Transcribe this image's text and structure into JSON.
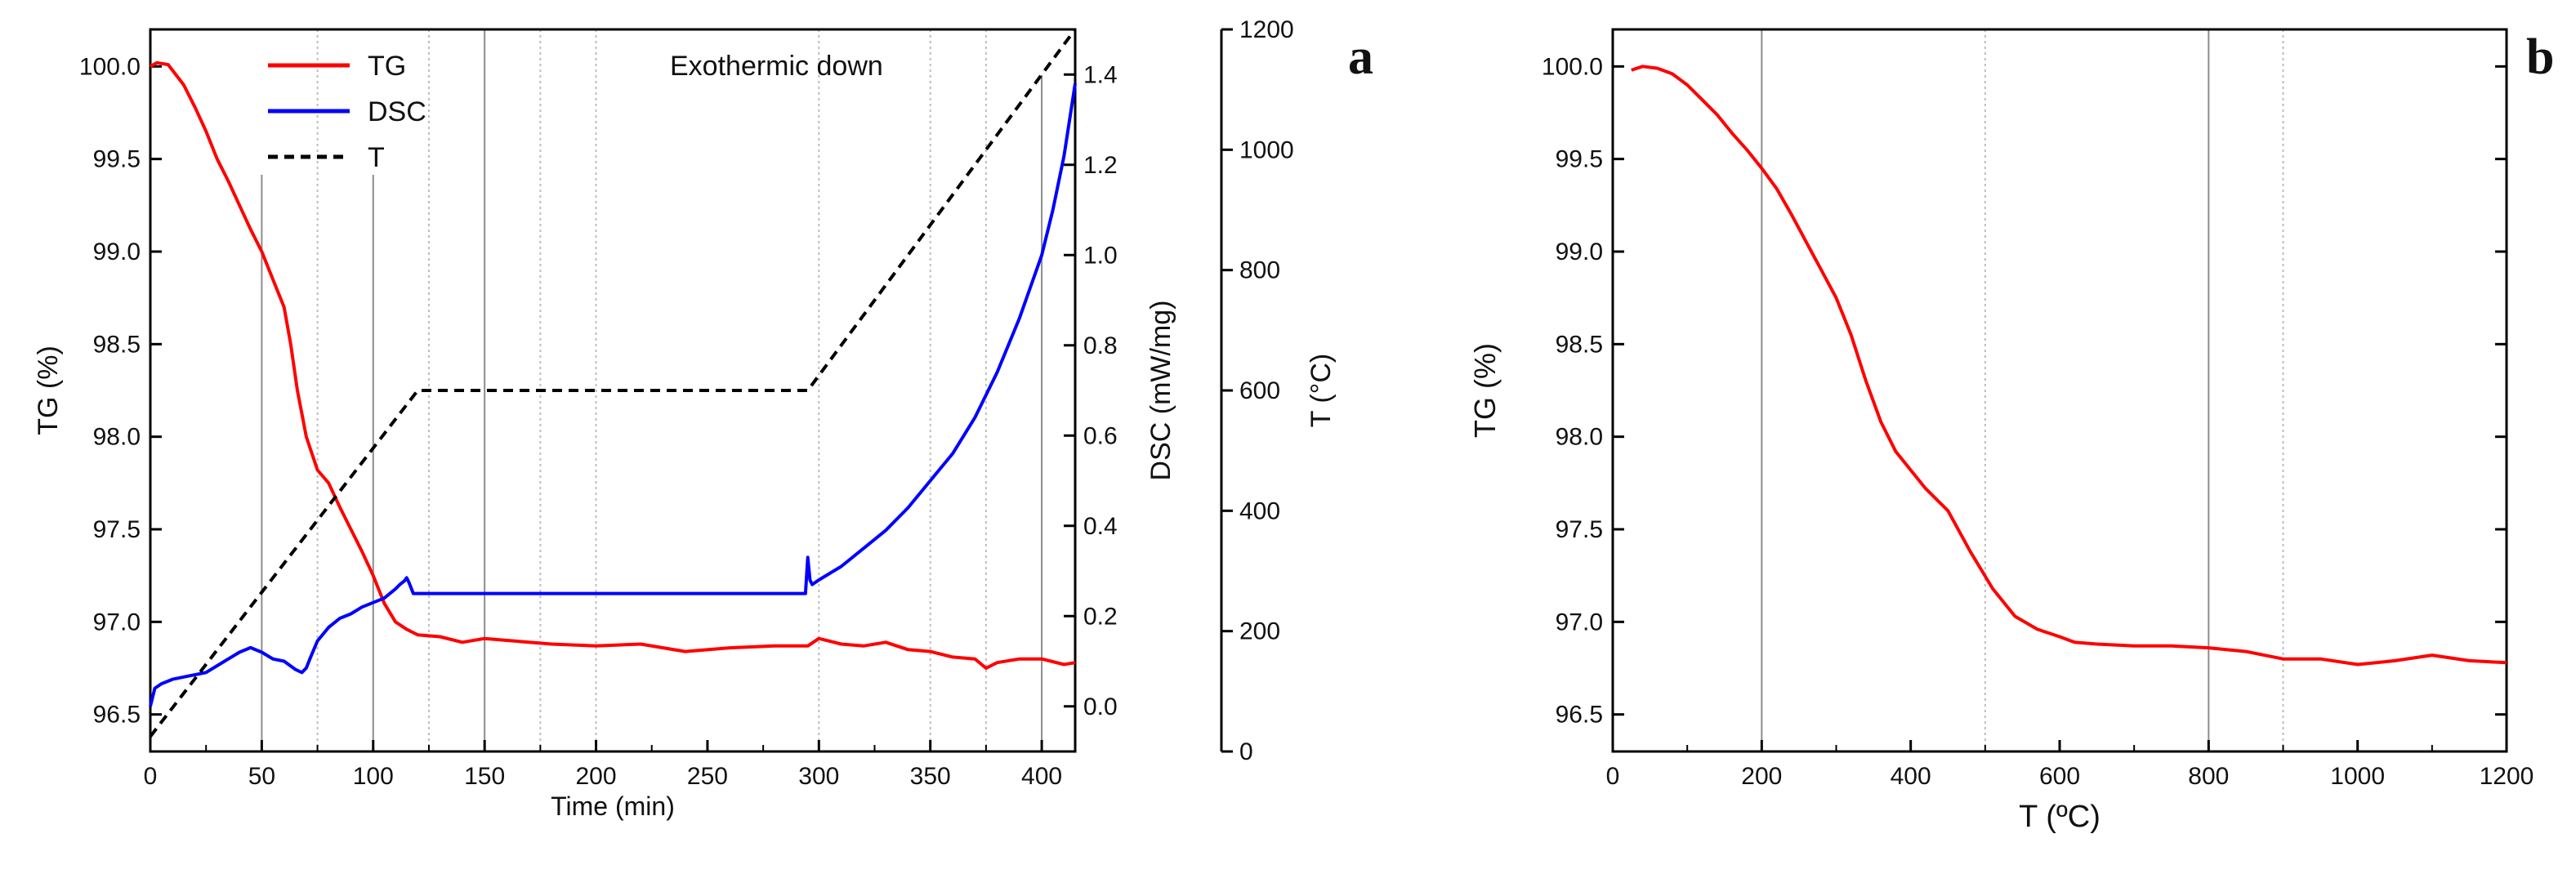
{
  "chart_data": [
    {
      "type": "line",
      "panel_label": "a",
      "annotation": "Exothermic down",
      "xlabel": "Time (min)",
      "xlim": [
        0,
        415
      ],
      "xticks": [
        0,
        50,
        100,
        150,
        200,
        250,
        300,
        350,
        400
      ],
      "axes": {
        "tg": {
          "label": "TG (%)",
          "lim": [
            96.3,
            100.2
          ],
          "ticks": [
            "96.5",
            "97.0",
            "97.5",
            "98.0",
            "98.5",
            "99.0",
            "99.5",
            "100.0"
          ]
        },
        "dsc": {
          "label": "DSC (mW/mg)",
          "lim": [
            -0.1,
            1.5
          ],
          "ticks": [
            "0.0",
            "0.2",
            "0.4",
            "0.6",
            "0.8",
            "1.0",
            "1.2",
            "1.4"
          ]
        },
        "t": {
          "label": "T (°C)",
          "lim": [
            0,
            1200
          ],
          "ticks": [
            "0",
            "200",
            "400",
            "600",
            "800",
            "1000",
            "1200"
          ]
        }
      },
      "vlines_solid": [
        50,
        100,
        150,
        400
      ],
      "vlines_dotted": [
        75,
        125,
        175,
        200,
        300,
        350,
        375
      ],
      "legend": [
        {
          "name": "TG",
          "color": "#ff0000",
          "dash": "solid"
        },
        {
          "name": "DSC",
          "color": "#0000ff",
          "dash": "solid"
        },
        {
          "name": "T",
          "color": "#000000",
          "dash": "dashed"
        }
      ],
      "series": [
        {
          "name": "TG",
          "axis": "tg",
          "color": "#ff0000",
          "x": [
            0,
            3,
            8,
            15,
            20,
            25,
            30,
            35,
            40,
            45,
            50,
            55,
            60,
            63,
            66,
            70,
            75,
            80,
            85,
            90,
            95,
            100,
            105,
            110,
            115,
            120,
            130,
            140,
            150,
            160,
            180,
            200,
            220,
            240,
            260,
            280,
            295,
            300,
            310,
            320,
            330,
            340,
            350,
            360,
            370,
            375,
            380,
            390,
            400,
            410,
            415
          ],
          "y": [
            100.0,
            100.02,
            100.01,
            99.9,
            99.78,
            99.65,
            99.5,
            99.38,
            99.25,
            99.12,
            99.0,
            98.85,
            98.7,
            98.5,
            98.25,
            98.0,
            97.82,
            97.75,
            97.62,
            97.5,
            97.38,
            97.25,
            97.1,
            97.0,
            96.96,
            96.93,
            96.92,
            96.89,
            96.91,
            96.9,
            96.88,
            96.87,
            96.88,
            96.84,
            96.86,
            96.87,
            96.87,
            96.91,
            96.88,
            96.87,
            96.89,
            96.85,
            96.84,
            96.81,
            96.8,
            96.75,
            96.78,
            96.8,
            96.8,
            96.77,
            96.78
          ]
        },
        {
          "name": "DSC",
          "axis": "dsc",
          "color": "#0000ff",
          "x": [
            0,
            2,
            5,
            10,
            15,
            20,
            25,
            30,
            35,
            40,
            45,
            50,
            55,
            60,
            65,
            68,
            70,
            72,
            75,
            80,
            85,
            90,
            95,
            100,
            105,
            110,
            112,
            114,
            115,
            116,
            118,
            120,
            125,
            130,
            140,
            150,
            180,
            200,
            250,
            294,
            294.5,
            295,
            296,
            297,
            300,
            310,
            320,
            330,
            340,
            350,
            360,
            370,
            380,
            390,
            400,
            405,
            410,
            415
          ],
          "y": [
            0.0,
            0.04,
            0.05,
            0.06,
            0.065,
            0.07,
            0.075,
            0.09,
            0.105,
            0.12,
            0.13,
            0.12,
            0.105,
            0.1,
            0.082,
            0.075,
            0.085,
            0.11,
            0.145,
            0.175,
            0.195,
            0.205,
            0.22,
            0.23,
            0.24,
            0.26,
            0.27,
            0.278,
            0.285,
            0.275,
            0.25,
            0.25,
            0.25,
            0.25,
            0.25,
            0.25,
            0.25,
            0.25,
            0.25,
            0.25,
            0.29,
            0.33,
            0.28,
            0.27,
            0.28,
            0.31,
            0.35,
            0.39,
            0.44,
            0.5,
            0.56,
            0.64,
            0.74,
            0.86,
            1.0,
            1.1,
            1.22,
            1.38
          ]
        },
        {
          "name": "T",
          "axis": "t",
          "color": "#000000",
          "dash": "dashed",
          "x": [
            0,
            120,
            295,
            415
          ],
          "y": [
            25,
            600,
            600,
            1200
          ]
        }
      ]
    },
    {
      "type": "line",
      "panel_label": "b",
      "xlabel": "T (ºC)",
      "ylabel": "TG (%)",
      "xlim": [
        0,
        1200
      ],
      "ylim": [
        96.3,
        100.2
      ],
      "xticks": [
        "0",
        "200",
        "400",
        "600",
        "800",
        "1000",
        "1200"
      ],
      "yticks": [
        "96.5",
        "97.0",
        "97.5",
        "98.0",
        "98.5",
        "99.0",
        "99.5",
        "100.0"
      ],
      "vlines_solid": [
        200,
        800
      ],
      "vlines_dotted": [
        500,
        900
      ],
      "series": [
        {
          "name": "TG",
          "color": "#ff0000",
          "x": [
            25,
            40,
            60,
            80,
            100,
            120,
            140,
            160,
            180,
            200,
            220,
            240,
            260,
            280,
            300,
            320,
            340,
            360,
            380,
            400,
            420,
            450,
            480,
            510,
            540,
            570,
            600,
            620,
            650,
            700,
            750,
            800,
            850,
            900,
            950,
            1000,
            1050,
            1100,
            1150,
            1200
          ],
          "y": [
            99.98,
            100.0,
            99.99,
            99.96,
            99.9,
            99.82,
            99.74,
            99.64,
            99.55,
            99.45,
            99.34,
            99.2,
            99.05,
            98.9,
            98.75,
            98.55,
            98.3,
            98.08,
            97.92,
            97.82,
            97.72,
            97.6,
            97.38,
            97.18,
            97.03,
            96.96,
            96.92,
            96.89,
            96.88,
            96.87,
            96.87,
            96.86,
            96.84,
            96.8,
            96.8,
            96.77,
            96.79,
            96.82,
            96.79,
            96.78
          ]
        }
      ]
    }
  ]
}
